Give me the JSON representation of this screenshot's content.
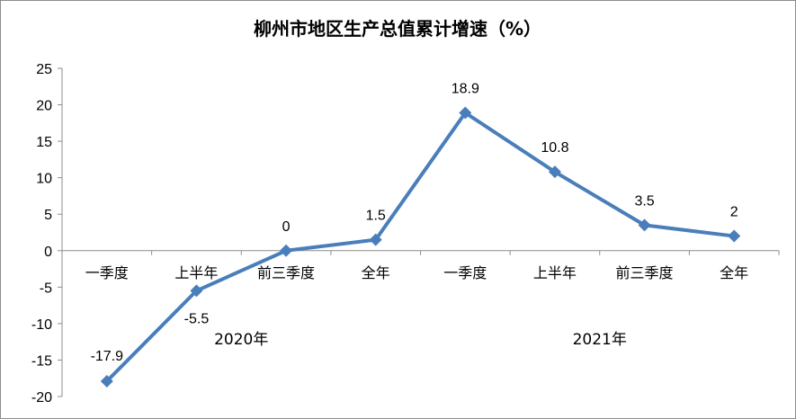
{
  "chart_data": {
    "type": "line",
    "title": "柳州市地区生产总值累计增速（%）",
    "categories": [
      "一季度",
      "上半年",
      "前三季度",
      "全年",
      "一季度",
      "上半年",
      "前三季度",
      "全年"
    ],
    "groups": [
      {
        "label": "2020年",
        "start": 0,
        "end": 3
      },
      {
        "label": "2021年",
        "start": 4,
        "end": 7
      }
    ],
    "series": [
      {
        "values": [
          -17.9,
          -5.5,
          0,
          1.5,
          18.9,
          10.8,
          3.5,
          2
        ]
      }
    ],
    "data_labels": [
      "-17.9",
      "-5.5",
      "0",
      "1.5",
      "18.9",
      "10.8",
      "3.5",
      "2"
    ],
    "ylim": [
      -20,
      25
    ],
    "yticks": [
      25,
      20,
      15,
      10,
      5,
      0,
      -5,
      -10,
      -15,
      -20
    ],
    "xlabel": "",
    "ylabel": "",
    "grid": false,
    "legend": "none",
    "line_color": "#4a7ebb",
    "marker": "diamond"
  }
}
